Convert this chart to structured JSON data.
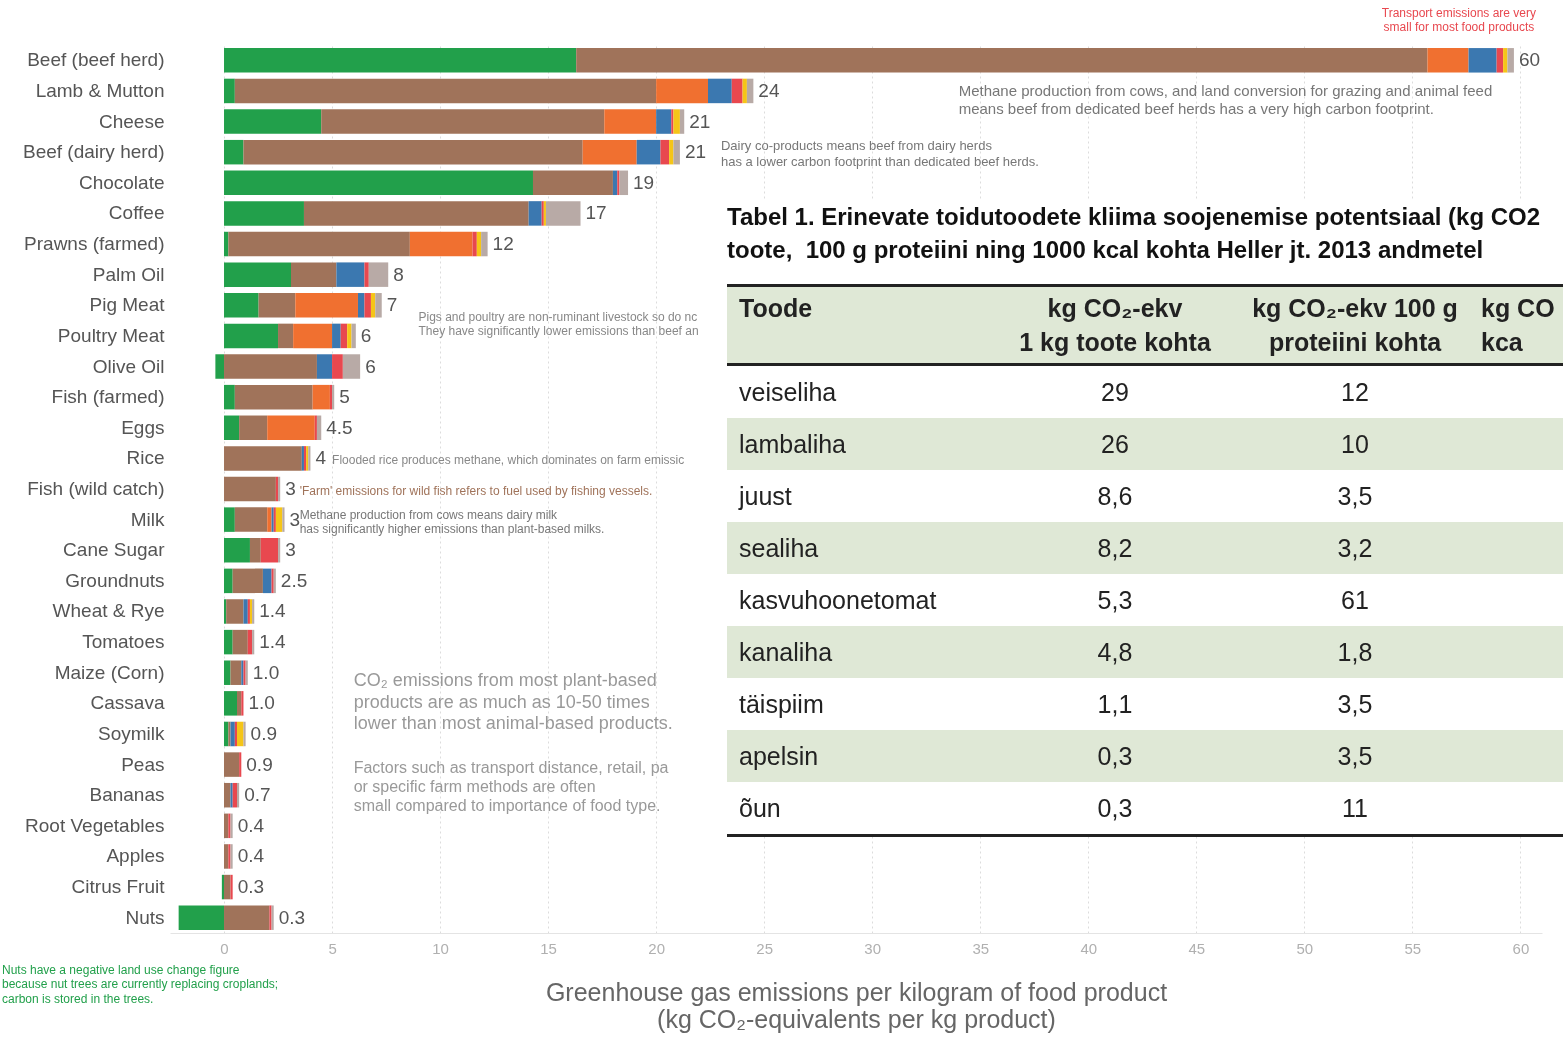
{
  "chart_data": [
    {
      "type": "bar",
      "orientation": "horizontal",
      "stacked": true,
      "xlabel": "Greenhouse gas emissions per kilogram of food product\n(kg CO₂-equivalents per kg product)",
      "categories": [
        "Beef (beef herd)",
        "Lamb & Mutton",
        "Cheese",
        "Beef (dairy herd)",
        "Chocolate",
        "Coffee",
        "Prawns (farmed)",
        "Palm Oil",
        "Pig Meat",
        "Poultry Meat",
        "Olive Oil",
        "Fish (farmed)",
        "Eggs",
        "Rice",
        "Fish (wild catch)",
        "Milk",
        "Cane Sugar",
        "Groundnuts",
        "Wheat & Rye",
        "Tomatoes",
        "Maize (Corn)",
        "Cassava",
        "Soymilk",
        "Peas",
        "Bananas",
        "Root Vegetables",
        "Apples",
        "Citrus Fruit",
        "Nuts"
      ],
      "series": [
        {
          "color": "#22a04b",
          "values": [
            16.3,
            0.5,
            4.5,
            0.9,
            14.3,
            3.7,
            0.2,
            3.1,
            1.6,
            2.5,
            -0.4,
            0.5,
            0.7,
            0,
            0,
            0.5,
            1.2,
            0.4,
            0.1,
            0.4,
            0.3,
            0.6,
            0.2,
            0,
            0,
            0,
            0,
            -0.1,
            -2.1
          ]
        },
        {
          "color": "#a0735a",
          "values": [
            39.4,
            19.5,
            13.1,
            15.7,
            3.7,
            10.4,
            8.4,
            2.1,
            1.7,
            0.7,
            4.3,
            3.6,
            1.3,
            3.6,
            2.4,
            1.5,
            0.5,
            1.4,
            0.8,
            0.7,
            0.5,
            0.2,
            0.1,
            0.7,
            0.3,
            0.2,
            0.2,
            0.3,
            2.1
          ]
        },
        {
          "color": "#f07030",
          "values": [
            1.9,
            2.4,
            2.4,
            2.5,
            0,
            0,
            2.9,
            0,
            2.9,
            1.8,
            0,
            0.8,
            2.2,
            0,
            0,
            0.2,
            0,
            0,
            0,
            0,
            0,
            0,
            0,
            0,
            0,
            0,
            0,
            0,
            0
          ]
        },
        {
          "color": "#3b78b0",
          "values": [
            1.3,
            1.1,
            0.7,
            1.1,
            0.2,
            0.6,
            0,
            1.3,
            0.3,
            0.4,
            0.7,
            0,
            0,
            0.1,
            0,
            0.1,
            0,
            0.4,
            0.2,
            0,
            0.1,
            0,
            0.2,
            0,
            0.1,
            0,
            0,
            0,
            0
          ]
        },
        {
          "color": "#e8484f",
          "values": [
            0.3,
            0.5,
            0.1,
            0.4,
            0.1,
            0.1,
            0.2,
            0.2,
            0.3,
            0.3,
            0.5,
            0.1,
            0.1,
            0.1,
            0.1,
            0.1,
            0.8,
            0.1,
            0.1,
            0.2,
            0.1,
            0.1,
            0.1,
            0.1,
            0.2,
            0.1,
            0.1,
            0.1,
            0.1
          ]
        },
        {
          "color": "#f5c518",
          "values": [
            0.2,
            0.2,
            0.3,
            0.2,
            0,
            0.1,
            0.2,
            0,
            0.2,
            0.2,
            0,
            0,
            0,
            0.1,
            0,
            0.3,
            0,
            0,
            0.1,
            0,
            0,
            0,
            0.3,
            0,
            0,
            0,
            0,
            0,
            0
          ]
        },
        {
          "color": "#b8aaa6",
          "values": [
            0.3,
            0.3,
            0.2,
            0.3,
            0.4,
            1.6,
            0.3,
            0.9,
            0.3,
            0.2,
            0.8,
            0.1,
            0.2,
            0.1,
            0.1,
            0.1,
            0.1,
            0.1,
            0.1,
            0.1,
            0.1,
            0,
            0.1,
            0,
            0.1,
            0.1,
            0.1,
            0,
            0.1
          ]
        }
      ],
      "totals": [
        "60",
        "24",
        "21",
        "21",
        "19",
        "17",
        "12",
        "8",
        "7",
        "6",
        "6",
        "5",
        "4.5",
        "4",
        "3",
        "3",
        "3",
        "2.5",
        "1.4",
        "1.4",
        "1.0",
        "1.0",
        "0.9",
        "0.9",
        "0.7",
        "0.4",
        "0.4",
        "0.3",
        "0.3"
      ],
      "xlim": [
        -2.5,
        61
      ],
      "xticks": [
        0,
        5,
        10,
        15,
        20,
        25,
        30,
        35,
        40,
        45,
        50,
        55,
        60
      ],
      "grid": "x",
      "annotations": [
        "Transport emissions are very\nsmall for most food products",
        "Methane production from cows, and land conversion for grazing and animal feed\nmeans beef from dedicated beef herds has a very high carbon footprint.",
        "Dairy co-products means beef from dairy herds\nhas a lower carbon footprint than dedicated beef herds.",
        "Pigs and poultry are non-ruminant livestock so do nc\nThey have significantly lower emissions than beef an",
        "Flooded rice produces methane, which dominates on farm emissic",
        "'Farm' emissions for wild fish refers to fuel used by fishing vessels.",
        "Methane production from cows means dairy milk\nhas significantly higher emissions than plant-based milks.",
        "CO₂ emissions from most plant-based\nproducts are as much as 10-50 times\nlower than most animal-based products.",
        "Factors such as transport distance, retail, pa\nor specific farm methods are often\nsmall compared to importance of food type.",
        "Nuts have a negative land use change figure\nbecause nut trees are currently replacing croplands;\ncarbon is stored in the trees."
      ]
    },
    {
      "type": "other",
      "title": "Tabel 1. Erinevate toidutoodete kliima soojenemise potentsiaal (kg CO2\ntoote,  100 g proteiini ning 1000 kcal kohta Heller jt. 2013 andmetel",
      "ylabel": "Toode",
      "categories": [
        "kg CO₂-ekv\n1 kg toote kohta",
        "kg CO₂-ekv 100 g\nproteiini kohta",
        "kg CO\nkca"
      ],
      "y_categories": [
        "veiseliha",
        "lambaliha",
        "juust",
        "sealiha",
        "kasvuhoonetomat",
        "kanaliha",
        "täispiim",
        "apelsin",
        "õun"
      ],
      "cell_labels": [
        [
          "29",
          "12",
          null
        ],
        [
          "26",
          "10",
          null
        ],
        [
          "8,6",
          "3,5",
          null
        ],
        [
          "8,2",
          "3,2",
          null
        ],
        [
          "5,3",
          "61",
          null
        ],
        [
          "4,8",
          "1,8",
          null
        ],
        [
          "1,1",
          "3,5",
          null
        ],
        [
          "0,3",
          "3,5",
          null
        ],
        [
          "0,3",
          "11",
          null
        ]
      ]
    }
  ]
}
